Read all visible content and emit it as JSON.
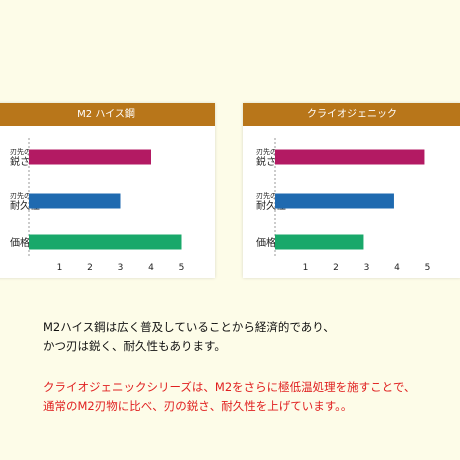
{
  "colors": {
    "header": "#b8761a",
    "sharpness": "#b31a63",
    "durability": "#1f6ab0",
    "price": "#19a86a",
    "red_text": "#e02020"
  },
  "charts": [
    {
      "title": "M2 ハイス鋼"
    },
    {
      "title": "クライオジェニック"
    }
  ],
  "chart_data": [
    {
      "type": "bar",
      "orientation": "horizontal",
      "title": "M2 ハイス鋼",
      "categories": [
        [
          "刃先の",
          "鋭さ"
        ],
        [
          "刃先の",
          "耐久性"
        ],
        [
          "",
          "価格"
        ]
      ],
      "values": [
        4,
        3,
        5
      ],
      "xticks": [
        1,
        2,
        3,
        4,
        5
      ],
      "xlim": [
        0,
        5
      ],
      "bar_colors": [
        "#b31a63",
        "#1f6ab0",
        "#19a86a"
      ]
    },
    {
      "type": "bar",
      "orientation": "horizontal",
      "title": "クライオジェニック",
      "categories": [
        [
          "刃先の",
          "鋭さ"
        ],
        [
          "刃先の",
          "耐久性"
        ],
        [
          "",
          "価格"
        ]
      ],
      "values": [
        4.9,
        3.9,
        2.9
      ],
      "xticks": [
        1,
        2,
        3,
        4,
        5
      ],
      "xlim": [
        0,
        5
      ],
      "bar_colors": [
        "#b31a63",
        "#1f6ab0",
        "#19a86a"
      ]
    }
  ],
  "text": {
    "para1_line1": "M2ハイス鋼は広く普及していることから経済的であり、",
    "para1_line2": "かつ刃は鋭く、耐久性もあります。",
    "para2_line1": "クライオジェニックシリーズは、M2をさらに極低温処理を施すことで、",
    "para2_line2": "通常のM2刃物に比べ、刃の鋭さ、耐久性を上げています。。"
  }
}
